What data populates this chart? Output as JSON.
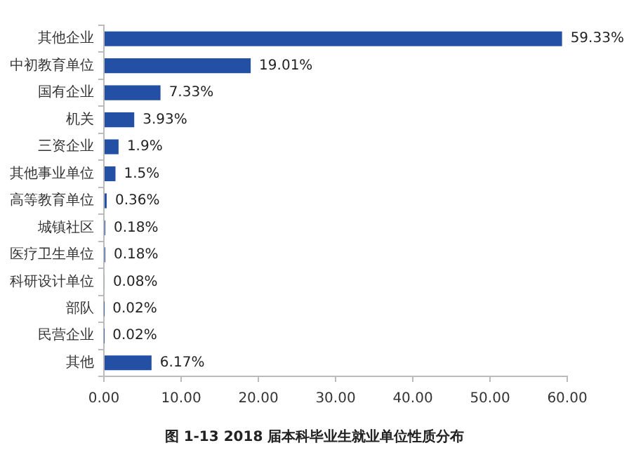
{
  "chart_data": {
    "type": "bar",
    "orientation": "horizontal",
    "title": "图 1-13    2018 届本科毕业生就业单位性质分布",
    "categories": [
      "其他企业",
      "中初教育单位",
      "国有企业",
      "机关",
      "三资企业",
      "其他事业单位",
      "高等教育单位",
      "城镇社区",
      "医疗卫生单位",
      "科研设计单位",
      "部队",
      "民营企业",
      "其他"
    ],
    "values": [
      59.33,
      19.01,
      7.33,
      3.93,
      1.9,
      1.5,
      0.36,
      0.18,
      0.18,
      0.08,
      0.02,
      0.02,
      6.17
    ],
    "value_labels": [
      "59.33%",
      "19.01%",
      "7.33%",
      "3.93%",
      "1.9%",
      "1.5%",
      "0.36%",
      "0.18%",
      "0.18%",
      "0.08%",
      "0.02%",
      "0.02%",
      "6.17%"
    ],
    "color": "#2350a4",
    "xlim": [
      0,
      60
    ],
    "xticks": [
      {
        "value": 0,
        "label": "0.00"
      },
      {
        "value": 10,
        "label": "10.00"
      },
      {
        "value": 20,
        "label": "20.00"
      },
      {
        "value": 30,
        "label": "30.00"
      },
      {
        "value": 40,
        "label": "40.00"
      },
      {
        "value": 50,
        "label": "50.00"
      },
      {
        "value": 60,
        "label": "60.00"
      }
    ],
    "grid": false,
    "legend": false
  }
}
